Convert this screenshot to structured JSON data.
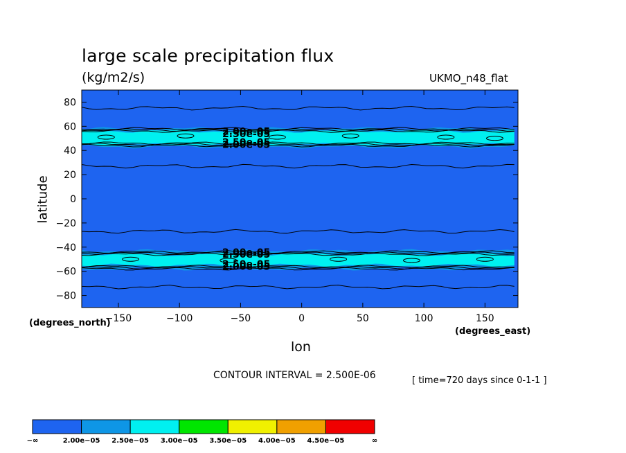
{
  "title": "large scale precipitation flux",
  "units": "(kg/m2/s)",
  "model": "UKMO_n48_flat",
  "contour_interval": "CONTOUR INTERVAL = 2.500E-06",
  "time_info": "[ time=720 days since 0-1-1 ]",
  "chart_data": {
    "type": "heatmap",
    "title": "large scale precipitation flux",
    "units": "(kg/m2/s)",
    "xlabel": "lon",
    "ylabel": "latitude",
    "x_unit_label": "(degrees_east)",
    "y_unit_label": "(degrees_north)",
    "xlim": [
      -180,
      177
    ],
    "ylim": [
      -90,
      90
    ],
    "xticks": [
      -150,
      -100,
      -50,
      0,
      50,
      100,
      150
    ],
    "xtick_labels": [
      "−150",
      "−100",
      "−50",
      "0",
      "50",
      "100",
      "150"
    ],
    "yticks": [
      80,
      60,
      40,
      20,
      0,
      -20,
      -40,
      -60,
      -80
    ],
    "ytick_labels": [
      "80",
      "60",
      "40",
      "20",
      "0",
      "−20",
      "−40",
      "−60",
      "−80"
    ],
    "colorbar": {
      "colors": [
        "#1e64f0",
        "#0e96e6",
        "#00f0f0",
        "#00e600",
        "#f0f000",
        "#f0a000",
        "#f00000"
      ],
      "labels": [
        "−∞",
        "2.00e−05",
        "2.50e−05",
        "3.00e−05",
        "3.50e−05",
        "4.00e−05",
        "4.50e−05",
        "∞"
      ]
    },
    "bands": [
      {
        "lat_min": -58,
        "lat_max": -43,
        "level": "2.00e-05 to 2.50e-05",
        "color": "#0e96e6"
      },
      {
        "lat_min": -55,
        "lat_max": -46,
        "level": "2.50e-05 to 3.00e-05",
        "color": "#00f0f0"
      },
      {
        "lat_min": 43,
        "lat_max": 58,
        "level": "2.00e-05 to 2.50e-05",
        "color": "#0e96e6"
      },
      {
        "lat_min": 45,
        "lat_max": 56,
        "level": "2.50e-05 to 3.00e-05",
        "color": "#00f0f0"
      }
    ],
    "contour_lines_lat": [
      75,
      58,
      57,
      56,
      46,
      45,
      44,
      27,
      -27,
      -44,
      -45,
      -46,
      -56,
      -57,
      -58,
      -73
    ],
    "contour_labels": [
      {
        "text": "2.00e-05",
        "lon": -65,
        "lat": 56
      },
      {
        "text": "2.50e-05",
        "lon": -65,
        "lat": 54
      },
      {
        "text": "2.50e-05",
        "lon": -65,
        "lat": 47
      },
      {
        "text": "2.00e-05",
        "lon": -65,
        "lat": 45
      },
      {
        "text": "2.00e-05",
        "lon": -65,
        "lat": -44
      },
      {
        "text": "2.50e-05",
        "lon": -65,
        "lat": -46
      },
      {
        "text": "2.50e-05",
        "lon": -65,
        "lat": -54
      },
      {
        "text": "2.00e-05",
        "lon": -65,
        "lat": -56
      }
    ]
  }
}
